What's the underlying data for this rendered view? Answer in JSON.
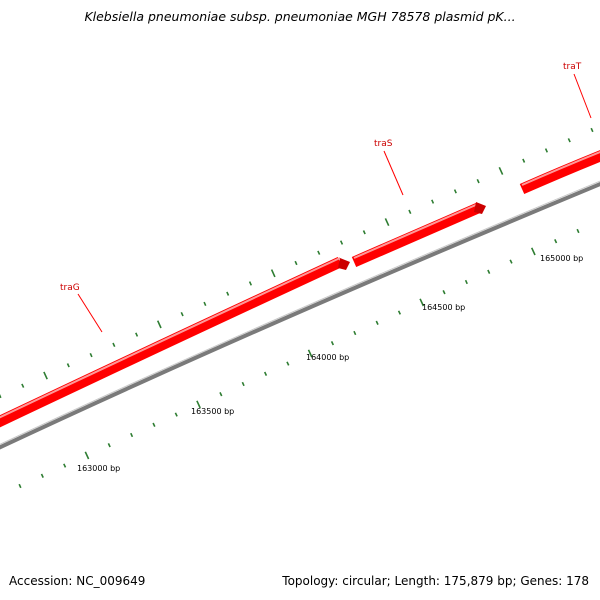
{
  "title": "Klebsiella pneumoniae subsp. pneumoniae MGH 78578 plasmid pK...",
  "footer": {
    "accession": "Accession: NC_009649",
    "summary": "Topology: circular; Length: 175,879 bp; Genes: 178"
  },
  "colors": {
    "gene": "#ff0000",
    "backbone": "#808080",
    "tick": "#2e7d32",
    "gene_label": "#cc0000"
  },
  "scale_labels": [
    "163000 bp",
    "163500 bp",
    "164000 bp",
    "164500 bp",
    "165000 bp"
  ],
  "genes": [
    "traG",
    "traS",
    "traT"
  ]
}
